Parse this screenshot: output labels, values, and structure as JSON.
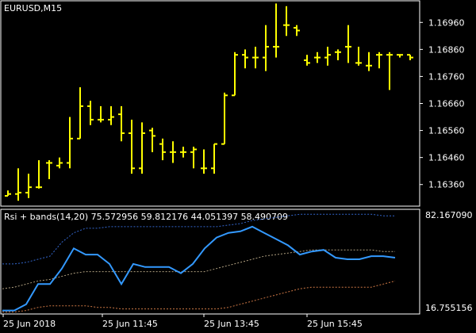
{
  "main_panel": {
    "symbol_label": "EURUSD,M15",
    "price_axis_ticks": [
      "1.16960",
      "1.16860",
      "1.16760",
      "1.16660",
      "1.16560",
      "1.16460",
      "1.16360"
    ],
    "bar_color": "#FFFF00"
  },
  "indicator_panel": {
    "title": "Rsi + bands(14,20) 75.572956 59.812176 44.051397 58.490709",
    "max_label": "82.167090",
    "min_label": "16.755156",
    "rsi_color": "#3399FF",
    "upper_band_color": "#3366CC",
    "middle_band_color": "#B0A080",
    "lower_band_color": "#CC7744"
  },
  "time_axis": {
    "labels": [
      "25 Jun 2018",
      "25 Jun 11:45",
      "25 Jun 13:45",
      "25 Jun 15:45"
    ]
  },
  "chart_data": [
    {
      "type": "ohlc",
      "title": "EURUSD,M15",
      "ylim": [
        1.1628,
        1.1704
      ],
      "bars": [
        {
          "o": 1.16318,
          "h": 1.16338,
          "l": 1.16318,
          "c": 1.16325
        },
        {
          "o": 1.16325,
          "h": 1.1642,
          "l": 1.163,
          "c": 1.1633
        },
        {
          "o": 1.1633,
          "h": 1.164,
          "l": 1.1631,
          "c": 1.1635
        },
        {
          "o": 1.1635,
          "h": 1.1645,
          "l": 1.16345,
          "c": 1.1635
        },
        {
          "o": 1.1644,
          "h": 1.1645,
          "l": 1.1638,
          "c": 1.1644
        },
        {
          "o": 1.1643,
          "h": 1.1646,
          "l": 1.1642,
          "c": 1.1644
        },
        {
          "o": 1.1644,
          "h": 1.1661,
          "l": 1.1642,
          "c": 1.1653
        },
        {
          "o": 1.1653,
          "h": 1.1672,
          "l": 1.1653,
          "c": 1.1665
        },
        {
          "o": 1.1665,
          "h": 1.1667,
          "l": 1.1658,
          "c": 1.166
        },
        {
          "o": 1.166,
          "h": 1.1665,
          "l": 1.1659,
          "c": 1.166
        },
        {
          "o": 1.166,
          "h": 1.1665,
          "l": 1.1658,
          "c": 1.1661
        },
        {
          "o": 1.1662,
          "h": 1.1665,
          "l": 1.1652,
          "c": 1.1655
        },
        {
          "o": 1.1655,
          "h": 1.166,
          "l": 1.164,
          "c": 1.1642
        },
        {
          "o": 1.1642,
          "h": 1.1659,
          "l": 1.164,
          "c": 1.1655
        },
        {
          "o": 1.1656,
          "h": 1.1657,
          "l": 1.1648,
          "c": 1.1654
        },
        {
          "o": 1.1651,
          "h": 1.1653,
          "l": 1.1645,
          "c": 1.1648
        },
        {
          "o": 1.1648,
          "h": 1.1652,
          "l": 1.1644,
          "c": 1.1648
        },
        {
          "o": 1.1648,
          "h": 1.165,
          "l": 1.1646,
          "c": 1.1648
        },
        {
          "o": 1.1648,
          "h": 1.165,
          "l": 1.1642,
          "c": 1.1649
        },
        {
          "o": 1.1642,
          "h": 1.1649,
          "l": 1.164,
          "c": 1.1642
        },
        {
          "o": 1.1642,
          "h": 1.1651,
          "l": 1.164,
          "c": 1.1651
        },
        {
          "o": 1.1651,
          "h": 1.167,
          "l": 1.1651,
          "c": 1.1669
        },
        {
          "o": 1.1669,
          "h": 1.1685,
          "l": 1.1669,
          "c": 1.1684
        },
        {
          "o": 1.1684,
          "h": 1.1686,
          "l": 1.1679,
          "c": 1.1683
        },
        {
          "o": 1.1683,
          "h": 1.1687,
          "l": 1.1679,
          "c": 1.1683
        },
        {
          "o": 1.1683,
          "h": 1.1695,
          "l": 1.1678,
          "c": 1.1687
        },
        {
          "o": 1.1687,
          "h": 1.1703,
          "l": 1.1683,
          "c": 1.1687
        },
        {
          "o": 1.1695,
          "h": 1.1702,
          "l": 1.1691,
          "c": 1.1695
        },
        {
          "o": 1.1694,
          "h": 1.1695,
          "l": 1.1691,
          "c": 1.1693
        },
        {
          "o": 1.1682,
          "h": 1.1684,
          "l": 1.168,
          "c": 1.1681
        },
        {
          "o": 1.1683,
          "h": 1.1685,
          "l": 1.1681,
          "c": 1.1683
        },
        {
          "o": 1.1683,
          "h": 1.1687,
          "l": 1.168,
          "c": 1.1684
        },
        {
          "o": 1.1685,
          "h": 1.1686,
          "l": 1.1682,
          "c": 1.1685
        },
        {
          "o": 1.1687,
          "h": 1.1695,
          "l": 1.1681,
          "c": 1.1687
        },
        {
          "o": 1.1681,
          "h": 1.1687,
          "l": 1.168,
          "c": 1.1681
        },
        {
          "o": 1.168,
          "h": 1.1685,
          "l": 1.1678,
          "c": 1.168
        },
        {
          "o": 1.1684,
          "h": 1.1685,
          "l": 1.1679,
          "c": 1.1684
        },
        {
          "o": 1.1684,
          "h": 1.1685,
          "l": 1.1671,
          "c": 1.1684
        },
        {
          "o": 1.1684,
          "h": 1.1684,
          "l": 1.1683,
          "c": 1.1684
        },
        {
          "o": 1.1684,
          "h": 1.1684,
          "l": 1.1682,
          "c": 1.1683
        }
      ]
    },
    {
      "type": "line",
      "title": "Rsi + bands(14,20) 75.572956 59.812176 44.051397 58.490709",
      "ylim": [
        16.755156,
        82.16709
      ],
      "series": [
        {
          "values": [
            18,
            18,
            22,
            35,
            35,
            45,
            58,
            54,
            54,
            48,
            35,
            48,
            46,
            46,
            46,
            42,
            48,
            58,
            65,
            68,
            69,
            72,
            68,
            64,
            60,
            54,
            56,
            57,
            52,
            51,
            51,
            53,
            53,
            52
          ]
        },
        {
          "values": [
            48,
            48,
            49,
            51,
            53,
            62,
            68,
            71,
            71,
            72,
            72,
            72,
            72,
            72,
            72,
            72,
            72,
            72,
            72,
            73,
            74,
            76,
            77,
            78,
            79,
            80,
            80,
            80,
            80,
            80,
            80,
            80,
            79,
            79
          ]
        },
        {
          "values": [
            32,
            33,
            35,
            37,
            38,
            40,
            42,
            43,
            43,
            43,
            43,
            43,
            43,
            43,
            43,
            43,
            43,
            43,
            45,
            47,
            49,
            51,
            53,
            54,
            55,
            56,
            57,
            57,
            57,
            57,
            57,
            57,
            56,
            56
          ]
        },
        {
          "values": [
            17,
            17,
            18,
            20,
            21,
            21,
            21,
            21,
            20,
            20,
            19,
            19,
            19,
            19,
            19,
            19,
            19,
            19,
            19,
            20,
            22,
            24,
            26,
            28,
            30,
            32,
            33,
            33,
            33,
            33,
            33,
            33,
            35,
            37
          ]
        }
      ]
    }
  ]
}
